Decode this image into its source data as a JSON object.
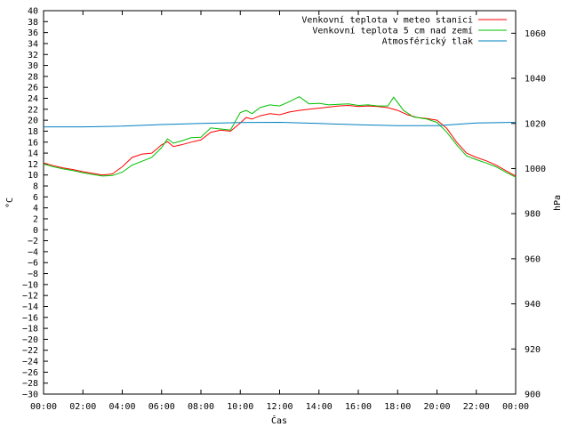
{
  "chart_data": {
    "type": "line",
    "xlabel": "Čas",
    "ylabel_left": "°C",
    "ylabel_right": "hPa",
    "xlim": [
      0,
      24
    ],
    "ylim_left": [
      -30,
      40
    ],
    "ylim_right": [
      900,
      1070
    ],
    "x_ticks": [
      "00:00",
      "02:00",
      "04:00",
      "06:00",
      "08:00",
      "10:00",
      "12:00",
      "14:00",
      "16:00",
      "18:00",
      "20:00",
      "22:00",
      "00:00"
    ],
    "y_ticks_left": [
      -30,
      -28,
      -26,
      -24,
      -22,
      -20,
      -18,
      -16,
      -14,
      -12,
      -10,
      -8,
      -6,
      -4,
      -2,
      0,
      2,
      4,
      6,
      8,
      10,
      12,
      14,
      16,
      18,
      20,
      22,
      24,
      26,
      28,
      30,
      32,
      34,
      36,
      38,
      40
    ],
    "y_ticks_right": [
      900,
      920,
      940,
      960,
      980,
      1000,
      1020,
      1040,
      1060
    ],
    "grid": false,
    "legend_position": "top-right",
    "series": [
      {
        "name": "Venkovní teplota v meteo stanici",
        "axis": "left",
        "color": "#ff0000",
        "x": [
          0,
          0.5,
          1,
          1.5,
          2,
          2.5,
          3,
          3.5,
          4,
          4.5,
          5,
          5.5,
          6,
          6.3,
          6.6,
          7,
          7.5,
          8,
          8.5,
          9,
          9.5,
          10,
          10.3,
          10.6,
          11,
          11.5,
          12,
          12.5,
          13,
          13.5,
          14,
          14.5,
          15,
          15.5,
          16,
          16.5,
          17,
          17.5,
          18,
          18.5,
          19,
          19.5,
          20,
          20.5,
          21,
          21.5,
          22,
          22.5,
          23,
          23.5,
          24
        ],
        "values": [
          12.2,
          11.7,
          11.3,
          11,
          10.6,
          10.3,
          10,
          10.2,
          11.5,
          13.2,
          13.8,
          14,
          15.5,
          16.1,
          15.2,
          15.5,
          16,
          16.4,
          17.8,
          18.2,
          18,
          19.5,
          20.5,
          20.2,
          20.8,
          21.2,
          21,
          21.5,
          21.8,
          22,
          22.2,
          22.4,
          22.6,
          22.7,
          22.5,
          22.6,
          22.5,
          22.3,
          21.8,
          21,
          20.5,
          20.3,
          20,
          18.5,
          16,
          14,
          13.2,
          12.6,
          11.8,
          10.8,
          9.8
        ]
      },
      {
        "name": "Venkovní teplota 5 cm nad zemí",
        "axis": "left",
        "color": "#00c000",
        "x": [
          0,
          0.5,
          1,
          1.5,
          2,
          2.5,
          3,
          3.5,
          4,
          4.5,
          5,
          5.5,
          6,
          6.3,
          6.6,
          7,
          7.5,
          8,
          8.5,
          9,
          9.5,
          10,
          10.3,
          10.6,
          11,
          11.5,
          12,
          12.5,
          13,
          13.5,
          14,
          14.5,
          15,
          15.5,
          16,
          16.5,
          17,
          17.5,
          17.8,
          18.3,
          18.8,
          19.5,
          20,
          20.5,
          21,
          21.5,
          22,
          22.5,
          23,
          23.5,
          24
        ],
        "values": [
          12,
          11.5,
          11.1,
          10.8,
          10.4,
          10.1,
          9.8,
          9.9,
          10.5,
          11.8,
          12.5,
          13.2,
          15,
          16.6,
          15.8,
          16.2,
          16.8,
          16.9,
          18.6,
          18.4,
          18.2,
          21.4,
          21.8,
          21.2,
          22.3,
          22.8,
          22.6,
          23.4,
          24.3,
          23,
          23.1,
          22.8,
          22.9,
          23,
          22.7,
          22.8,
          22.6,
          22.6,
          24.2,
          21.8,
          20.6,
          20.2,
          19.6,
          17.8,
          15.5,
          13.5,
          12.8,
          12.2,
          11.5,
          10.5,
          9.6
        ]
      },
      {
        "name": "Atmosférický tlak",
        "axis": "right",
        "color": "#0080c0",
        "x": [
          0,
          2,
          4,
          6,
          8,
          10,
          12,
          14,
          16,
          18,
          20,
          22,
          24
        ],
        "values": [
          1018.5,
          1018.5,
          1018.8,
          1019.5,
          1020,
          1020.4,
          1020.5,
          1020,
          1019.4,
          1019,
          1019,
          1020.2,
          1020.5
        ]
      }
    ]
  }
}
